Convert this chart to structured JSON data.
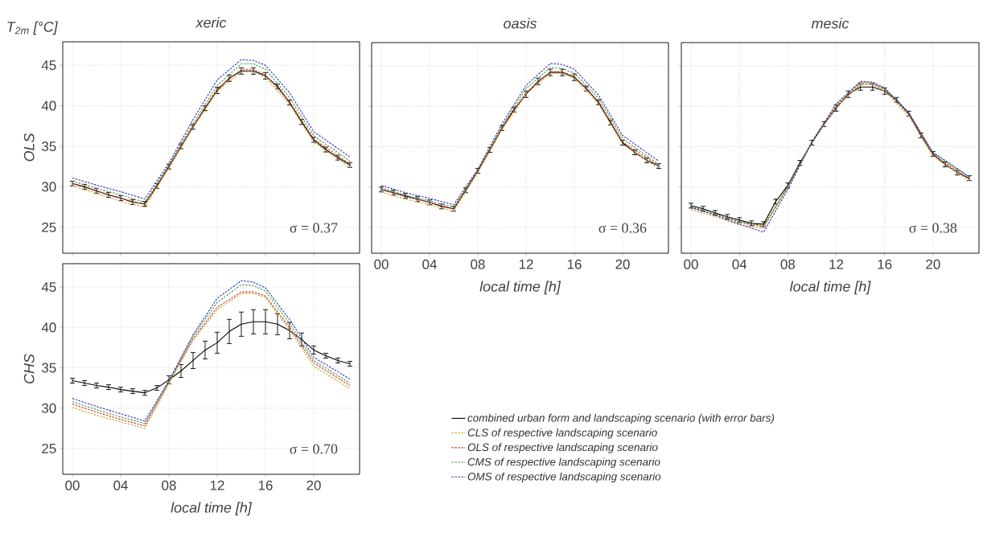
{
  "chart_data": [
    {
      "type": "line",
      "title": "xeric",
      "ylabel": "OLS",
      "annotations": [
        "T$_{2m}$ [°C]",
        "σ = 0.37"
      ],
      "x": [
        0,
        1,
        2,
        3,
        4,
        5,
        6,
        7,
        8,
        9,
        10,
        11,
        12,
        13,
        14,
        15,
        16,
        17,
        18,
        19,
        20,
        21,
        22,
        23
      ],
      "xlim": [
        -0.8,
        23.8
      ],
      "ylim": [
        21.8,
        47.9
      ],
      "xticks": [
        0,
        4,
        8,
        12,
        16,
        20
      ],
      "yticks": [
        25,
        30,
        35,
        40,
        45
      ],
      "tick_labels": "y",
      "grid": true,
      "marker": "none",
      "series": [
        {
          "color": "#000000",
          "line_style": "solid",
          "values": [
            30.4,
            30.0,
            29.5,
            29.0,
            28.6,
            28.1,
            27.9,
            30.1,
            32.5,
            35.0,
            37.4,
            39.7,
            41.9,
            43.4,
            44.3,
            44.3,
            43.7,
            42.4,
            40.4,
            38.0,
            35.8,
            34.6,
            33.6,
            32.7
          ],
          "errors": [
            0.3,
            0.3,
            0.3,
            0.3,
            0.3,
            0.3,
            0.3,
            0.3,
            0.3,
            0.3,
            0.3,
            0.3,
            0.4,
            0.4,
            0.4,
            0.4,
            0.4,
            0.3,
            0.3,
            0.3,
            0.3,
            0.3,
            0.3,
            0.3
          ]
        },
        {
          "color": "#c8a82a",
          "line_style": "dashed",
          "x": [
            0,
            2,
            4,
            6,
            8,
            10,
            12,
            14,
            15,
            16,
            18,
            20,
            23
          ],
          "values": [
            30.1,
            29.2,
            28.2,
            27.5,
            32.3,
            37.3,
            41.8,
            44.2,
            44.2,
            43.5,
            40.2,
            35.5,
            32.4
          ]
        },
        {
          "color": "#d03030",
          "line_style": "dashed",
          "x": [
            0,
            2,
            4,
            6,
            8,
            10,
            12,
            14,
            15,
            16,
            18,
            20,
            23
          ],
          "values": [
            30.4,
            29.5,
            28.6,
            27.8,
            32.5,
            37.5,
            42.1,
            44.5,
            44.5,
            43.8,
            40.5,
            35.9,
            32.8
          ]
        },
        {
          "color": "#40a040",
          "line_style": "dashed",
          "x": [
            0,
            2,
            4,
            6,
            8,
            10,
            12,
            14,
            15,
            16,
            18,
            20,
            23
          ],
          "values": [
            30.7,
            29.8,
            29.0,
            28.1,
            32.7,
            37.8,
            42.5,
            45.2,
            45.2,
            44.5,
            41.0,
            36.3,
            33.2
          ]
        },
        {
          "color": "#3030c0",
          "line_style": "dashed",
          "x": [
            0,
            2,
            4,
            6,
            8,
            10,
            12,
            14,
            15,
            16,
            18,
            20,
            23
          ],
          "values": [
            31.1,
            30.2,
            29.4,
            28.5,
            32.9,
            38.3,
            43.2,
            45.7,
            45.6,
            45.0,
            41.6,
            36.8,
            33.7
          ]
        }
      ]
    },
    {
      "type": "line",
      "title": "oasis",
      "xlabel": "local time [h]",
      "annotations": [
        "σ = 0.36"
      ],
      "x": [
        0,
        1,
        2,
        3,
        4,
        5,
        6,
        7,
        8,
        9,
        10,
        11,
        12,
        13,
        14,
        15,
        16,
        17,
        18,
        19,
        20,
        21,
        22,
        23
      ],
      "xlim": [
        -0.8,
        23.8
      ],
      "ylim": [
        21.8,
        47.9
      ],
      "xticks": [
        {
          "value": 0,
          "label": "00"
        },
        {
          "value": 4,
          "label": "04"
        },
        {
          "value": 8,
          "label": "08"
        },
        12,
        16,
        20
      ],
      "yticks": [
        25,
        30,
        35,
        40,
        45
      ],
      "tick_labels": "x",
      "grid": true,
      "marker": "none",
      "series": [
        {
          "color": "#000000",
          "line_style": "solid",
          "values": [
            29.7,
            29.3,
            28.9,
            28.5,
            28.1,
            27.6,
            27.3,
            29.6,
            32.0,
            34.6,
            37.3,
            39.6,
            41.5,
            43.1,
            44.2,
            44.2,
            43.6,
            42.2,
            40.5,
            38.0,
            35.5,
            34.3,
            33.3,
            32.6
          ],
          "errors": [
            0.3,
            0.3,
            0.3,
            0.3,
            0.3,
            0.3,
            0.3,
            0.3,
            0.3,
            0.3,
            0.3,
            0.3,
            0.4,
            0.4,
            0.4,
            0.4,
            0.4,
            0.3,
            0.3,
            0.3,
            0.3,
            0.3,
            0.3,
            0.3
          ]
        },
        {
          "color": "#c8a82a",
          "line_style": "dashed",
          "x": [
            0,
            2,
            4,
            6,
            8,
            10,
            12,
            14,
            15,
            16,
            18,
            20,
            23
          ],
          "values": [
            29.4,
            28.5,
            27.8,
            27.0,
            31.8,
            37.1,
            41.5,
            44.1,
            44.1,
            43.5,
            40.3,
            35.3,
            32.3
          ]
        },
        {
          "color": "#d03030",
          "line_style": "dashed",
          "x": [
            0,
            2,
            4,
            6,
            8,
            10,
            12,
            14,
            15,
            16,
            18,
            20,
            23
          ],
          "values": [
            29.7,
            28.8,
            28.1,
            27.3,
            32.0,
            37.3,
            41.7,
            44.3,
            44.3,
            43.7,
            40.6,
            35.6,
            32.6
          ]
        },
        {
          "color": "#40a040",
          "line_style": "dashed",
          "x": [
            0,
            2,
            4,
            6,
            8,
            10,
            12,
            14,
            15,
            16,
            18,
            20,
            23
          ],
          "values": [
            29.9,
            29.0,
            28.3,
            27.5,
            32.1,
            37.5,
            42.2,
            44.8,
            44.7,
            44.1,
            41.0,
            36.0,
            32.8
          ]
        },
        {
          "color": "#3030c0",
          "line_style": "dashed",
          "x": [
            0,
            2,
            4,
            6,
            8,
            10,
            12,
            14,
            15,
            16,
            18,
            20,
            23
          ],
          "values": [
            30.2,
            29.3,
            28.6,
            27.8,
            32.2,
            37.8,
            42.6,
            45.3,
            45.2,
            44.6,
            41.4,
            36.4,
            33.2
          ]
        }
      ]
    },
    {
      "type": "line",
      "title": "mesic",
      "xlabel": "local time [h]",
      "annotations": [
        "σ = 0.38"
      ],
      "x": [
        0,
        1,
        2,
        3,
        4,
        5,
        6,
        7,
        8,
        9,
        10,
        11,
        12,
        13,
        14,
        15,
        16,
        17,
        18,
        19,
        20,
        21,
        22,
        23
      ],
      "xlim": [
        -0.8,
        23.8
      ],
      "ylim": [
        21.8,
        47.9
      ],
      "xticks": [
        {
          "value": 0,
          "label": "00"
        },
        {
          "value": 4,
          "label": "04"
        },
        {
          "value": 8,
          "label": "08"
        },
        12,
        16,
        20
      ],
      "yticks": [
        25,
        30,
        35,
        40,
        45
      ],
      "tick_labels": "x",
      "grid": true,
      "marker": "none",
      "series": [
        {
          "color": "#000000",
          "line_style": "solid",
          "values": [
            27.7,
            27.3,
            26.8,
            26.3,
            25.9,
            25.5,
            25.4,
            28.2,
            30.2,
            33.0,
            35.5,
            37.8,
            39.8,
            41.5,
            42.4,
            42.4,
            41.9,
            40.8,
            39.1,
            36.4,
            34.1,
            32.8,
            31.8,
            31.1
          ],
          "errors": [
            0.3,
            0.3,
            0.3,
            0.3,
            0.3,
            0.3,
            0.3,
            0.3,
            0.3,
            0.3,
            0.3,
            0.3,
            0.4,
            0.4,
            0.4,
            0.4,
            0.4,
            0.3,
            0.3,
            0.3,
            0.3,
            0.3,
            0.3,
            0.3
          ]
        },
        {
          "color": "#c8a82a",
          "line_style": "dashed",
          "x": [
            0,
            2,
            4,
            6,
            8,
            10,
            12,
            14,
            15,
            16,
            18,
            20,
            23
          ],
          "values": [
            27.2,
            26.3,
            25.3,
            24.9,
            30.0,
            35.5,
            39.9,
            42.7,
            42.7,
            41.9,
            38.8,
            33.8,
            30.8
          ]
        },
        {
          "color": "#d03030",
          "line_style": "dashed",
          "x": [
            0,
            2,
            4,
            6,
            8,
            10,
            12,
            14,
            15,
            16,
            18,
            20,
            23
          ],
          "values": [
            27.4,
            26.6,
            25.6,
            25.1,
            30.1,
            35.6,
            40.0,
            42.8,
            42.8,
            42.1,
            39.0,
            34.0,
            31.0
          ]
        },
        {
          "color": "#40a040",
          "line_style": "dashed",
          "x": [
            0,
            2,
            4,
            6,
            8,
            10,
            12,
            14,
            15,
            16,
            18,
            20,
            23
          ],
          "values": [
            27.6,
            26.7,
            25.7,
            25.2,
            30.0,
            35.7,
            40.2,
            43.0,
            42.9,
            42.2,
            39.2,
            34.2,
            31.2
          ]
        },
        {
          "color": "#3030c0",
          "line_style": "dashed",
          "x": [
            0,
            2,
            4,
            6,
            8,
            10,
            12,
            14,
            15,
            16,
            18,
            20,
            23
          ],
          "values": [
            27.5,
            26.5,
            25.4,
            24.4,
            29.7,
            35.6,
            40.3,
            43.1,
            43.0,
            42.3,
            39.2,
            34.3,
            31.3
          ]
        }
      ]
    },
    {
      "type": "line",
      "ylabel": "CHS",
      "xlabel": "local time [h]",
      "annotations": [
        "σ = 0.70"
      ],
      "x": [
        0,
        1,
        2,
        3,
        4,
        5,
        6,
        7,
        8,
        9,
        10,
        11,
        12,
        13,
        14,
        15,
        16,
        17,
        18,
        19,
        20,
        21,
        22,
        23
      ],
      "xlim": [
        -0.8,
        23.8
      ],
      "ylim": [
        21.8,
        47.9
      ],
      "xticks": [
        {
          "value": 0,
          "label": "00"
        },
        {
          "value": 4,
          "label": "04"
        },
        {
          "value": 8,
          "label": "08"
        },
        12,
        16,
        20
      ],
      "yticks": [
        25,
        30,
        35,
        40,
        45
      ],
      "grid": true,
      "marker": "none",
      "legend": "right",
      "series": [
        {
          "name": "combined urban form and landscaping scenario (with error bars)",
          "color": "#000000",
          "line_style": "solid",
          "values": [
            33.4,
            33.1,
            32.8,
            32.6,
            32.3,
            32.1,
            31.9,
            32.5,
            33.5,
            34.6,
            35.9,
            37.2,
            38.1,
            39.5,
            40.4,
            40.7,
            40.7,
            40.4,
            39.6,
            38.5,
            37.2,
            36.5,
            35.9,
            35.5
          ],
          "errors": [
            0.3,
            0.3,
            0.3,
            0.3,
            0.3,
            0.3,
            0.3,
            0.3,
            0.5,
            0.8,
            1.0,
            1.1,
            1.3,
            1.5,
            1.5,
            1.5,
            1.5,
            1.3,
            1.0,
            0.8,
            0.5,
            0.3,
            0.3,
            0.3
          ]
        },
        {
          "name": "CLS of respective landscaping scenario",
          "color": "#c8a82a",
          "line_style": "dashed",
          "x": [
            0,
            2,
            4,
            6,
            8,
            10,
            12,
            14,
            15,
            16,
            18,
            20,
            23
          ],
          "values": [
            30.1,
            29.1,
            28.3,
            27.5,
            33.0,
            38.4,
            42.2,
            44.2,
            44.2,
            43.7,
            39.7,
            35.2,
            32.4
          ]
        },
        {
          "name": "OLS of respective landscaping scenario",
          "color": "#d03030",
          "line_style": "dashed",
          "x": [
            0,
            2,
            4,
            6,
            8,
            10,
            12,
            14,
            15,
            16,
            18,
            20,
            23
          ],
          "values": [
            30.5,
            29.5,
            28.6,
            27.8,
            33.2,
            38.6,
            42.5,
            44.4,
            44.4,
            43.9,
            40.0,
            35.6,
            32.8
          ]
        },
        {
          "name": "CMS of respective landscaping scenario",
          "color": "#40a040",
          "line_style": "dashed",
          "x": [
            0,
            2,
            4,
            6,
            8,
            10,
            12,
            14,
            15,
            16,
            18,
            20,
            23
          ],
          "values": [
            30.8,
            29.8,
            28.9,
            28.1,
            33.3,
            38.9,
            43.1,
            45.3,
            45.2,
            44.5,
            40.5,
            35.9,
            33.1
          ]
        },
        {
          "name": "OMS of respective landscaping scenario",
          "color": "#3030c0",
          "line_style": "dashed",
          "x": [
            0,
            2,
            4,
            6,
            8,
            10,
            12,
            14,
            15,
            16,
            18,
            20,
            23
          ],
          "values": [
            31.2,
            30.2,
            29.3,
            28.4,
            33.4,
            39.1,
            43.6,
            45.8,
            45.6,
            44.9,
            41.0,
            36.3,
            33.6
          ]
        }
      ]
    }
  ]
}
